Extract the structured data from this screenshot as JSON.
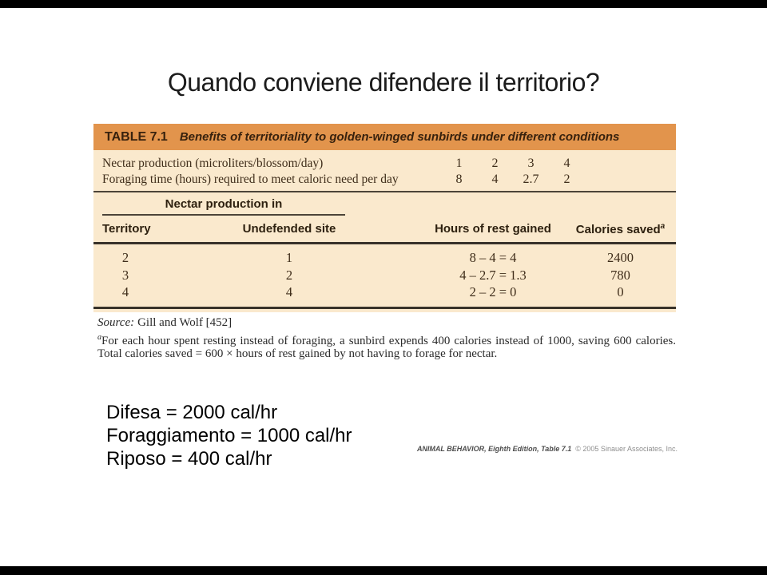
{
  "slide": {
    "title": "Quando conviene difendere il territorio?"
  },
  "figure": {
    "label": "TABLE 7.1",
    "caption": "Benefits of territoriality to golden-winged sunbirds under different conditions",
    "param_rows": [
      {
        "label": "Nectar production (microliters/blossom/day)",
        "v": [
          "1",
          "2",
          "3",
          "4"
        ]
      },
      {
        "label": "Foraging time (hours) required to meet caloric need per day",
        "v": [
          "8",
          "4",
          "2.7",
          "2"
        ]
      }
    ],
    "group_header": "Nectar production in",
    "columns": [
      "Territory",
      "Undefended site",
      "Hours of rest gained",
      "Calories saved"
    ],
    "calories_sup": "a",
    "rows": [
      [
        "2",
        "1",
        "8 – 4 = 4",
        "2400"
      ],
      [
        "3",
        "2",
        "4 – 2.7 = 1.3",
        "780"
      ],
      [
        "4",
        "4",
        "2 – 2 = 0",
        "0"
      ]
    ],
    "source_label": "Source:",
    "source_value": "Gill and Wolf [452]",
    "footnote_sup": "a",
    "footnote": "For each hour spent resting instead of foraging, a sunbird expends 400 calories instead of 1000, saving 600 calories. Total calories saved = 600 × hours of rest gained by not having to forage for nectar.",
    "credit_title": "ANIMAL BEHAVIOR, Eighth Edition, Table 7.1",
    "credit_copyright": "© 2005 Sinauer Associates, Inc."
  },
  "notes": [
    "Difesa = 2000 cal/hr",
    "Foraggiamento = 1000 cal/hr",
    "Riposo = 400 cal/hr"
  ],
  "colors": {
    "header_orange": "#e2944c",
    "body_cream": "#fae9cd",
    "table_text": "#3f2d1a"
  },
  "chart_data": {
    "type": "table",
    "title": "Benefits of territoriality to golden-winged sunbirds under different conditions",
    "conditions": {
      "nectar_production_microliters_blossom_day": [
        1,
        2,
        3,
        4
      ],
      "foraging_hours_required_to_meet_caloric_need_per_day": [
        8,
        4,
        2.7,
        2
      ]
    },
    "columns": [
      "Territory (nectar production in)",
      "Undefended site (nectar production in)",
      "Hours of rest gained",
      "Calories saved"
    ],
    "rows": [
      [
        2,
        1,
        "8 - 4 = 4",
        2400
      ],
      [
        3,
        2,
        "4 - 2.7 = 1.3",
        780
      ],
      [
        4,
        4,
        "2 - 2 = 0",
        0
      ]
    ]
  }
}
